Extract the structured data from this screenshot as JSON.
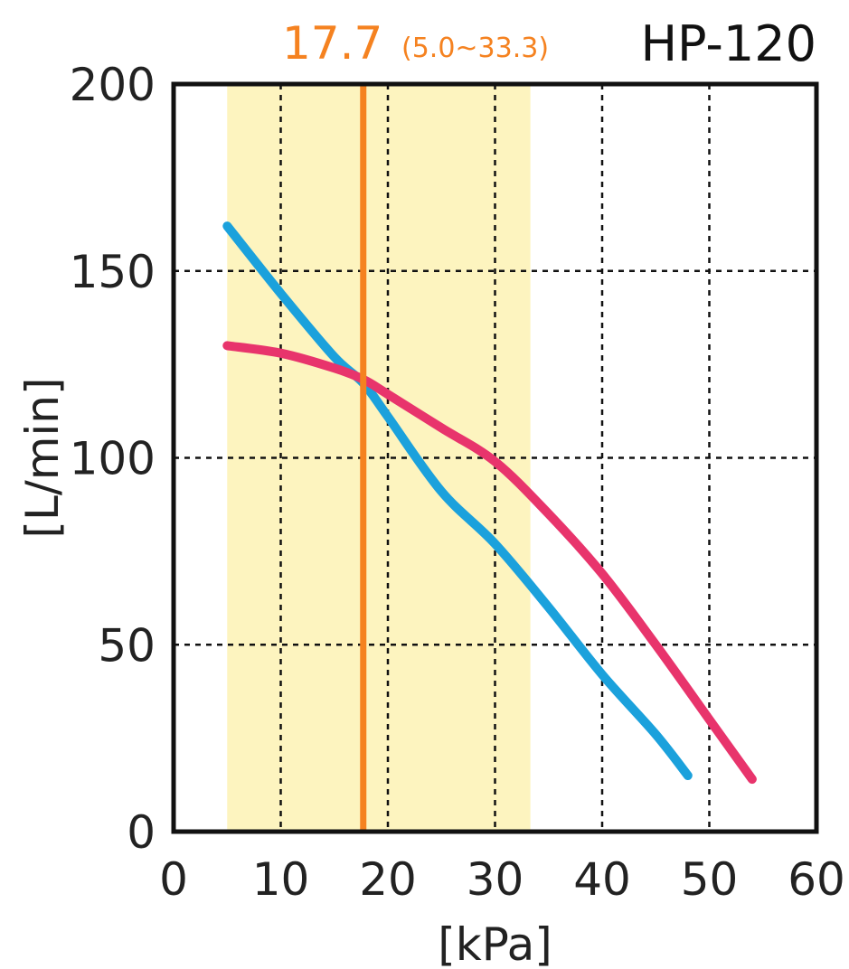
{
  "model_label": "HP-120",
  "rated": {
    "value_label": "17.7",
    "range_label": "(5.0~33.3)",
    "x": 17.7,
    "range": [
      5.0,
      33.3
    ],
    "color": "#f58220",
    "band_color": "#fdf4bf"
  },
  "chart_data": {
    "type": "line",
    "title": "HP-120",
    "xlabel": "[kPa]",
    "ylabel": "[L/min]",
    "xlim": [
      0,
      60
    ],
    "ylim": [
      0,
      200
    ],
    "x_ticks": [
      0,
      10,
      20,
      30,
      40,
      50,
      60
    ],
    "y_ticks": [
      0,
      50,
      100,
      150,
      200
    ],
    "grid": true,
    "grid_style": "dotted",
    "series": [
      {
        "color": "#1ba1dc",
        "points": [
          [
            5,
            162
          ],
          [
            10,
            144
          ],
          [
            15,
            127
          ],
          [
            17.7,
            120
          ],
          [
            20,
            111
          ],
          [
            25,
            91
          ],
          [
            30,
            77
          ],
          [
            35,
            60
          ],
          [
            40,
            42
          ],
          [
            45,
            26
          ],
          [
            48,
            15
          ]
        ]
      },
      {
        "color": "#e8346c",
        "points": [
          [
            5,
            130
          ],
          [
            10,
            128
          ],
          [
            15,
            124
          ],
          [
            17.7,
            121
          ],
          [
            20,
            117
          ],
          [
            25,
            108
          ],
          [
            30,
            99
          ],
          [
            35,
            85
          ],
          [
            40,
            69
          ],
          [
            45,
            50
          ],
          [
            50,
            30
          ],
          [
            54,
            14
          ]
        ]
      }
    ]
  }
}
